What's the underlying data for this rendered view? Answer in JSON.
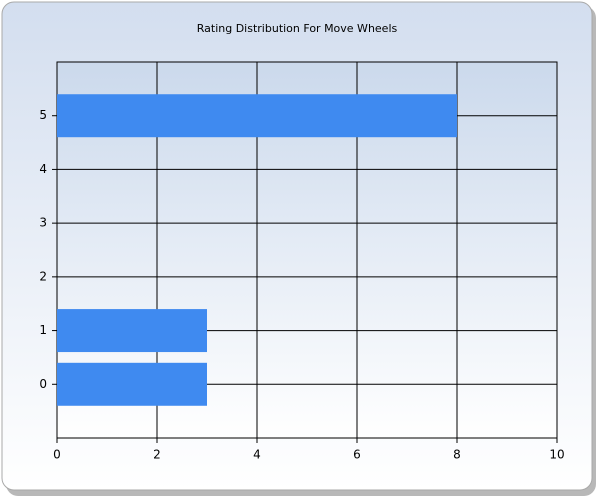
{
  "chart_data": {
    "type": "bar",
    "orientation": "horizontal",
    "title": "Rating Distribution For Move Wheels",
    "y": [
      0,
      1,
      5
    ],
    "values": [
      3,
      3,
      8
    ],
    "color": "#3f8af0",
    "xlim": [
      0,
      10
    ],
    "xticks": [
      0,
      2,
      4,
      6,
      8,
      10
    ],
    "ylim": [
      -1,
      6
    ],
    "yticks": [
      0,
      1,
      2,
      3,
      4,
      5
    ],
    "grid": true
  }
}
